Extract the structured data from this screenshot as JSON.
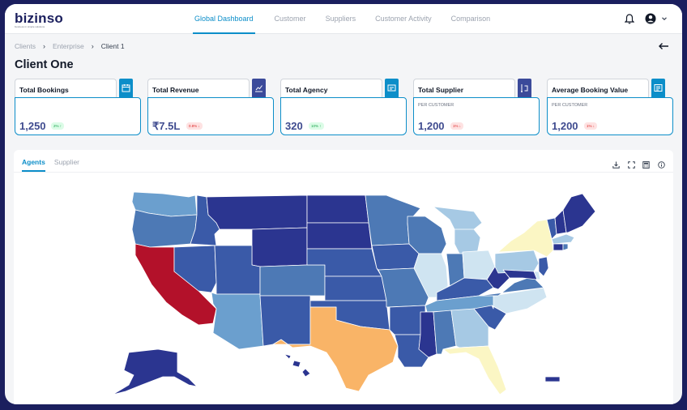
{
  "header": {
    "logo": "bizinso",
    "logo_tagline": "business in simple solutions",
    "nav": [
      "Global Dashboard",
      "Customer",
      "Suppliers",
      "Customer Activity",
      "Comparison"
    ],
    "active_nav": "Global Dashboard",
    "icons": [
      "bell-icon",
      "user-circle-icon",
      "chevron-down-icon"
    ]
  },
  "breadcrumb": [
    "Clients",
    "Enterprise",
    "Client 1"
  ],
  "page_title": "Client One",
  "cards": [
    {
      "title": "Total Bookings",
      "sub": "",
      "value": "1,250",
      "badge": "2% ↑",
      "trend": "up",
      "icon": "bookings-icon"
    },
    {
      "title": "Total Revenue",
      "sub": "",
      "value": "₹7.5L",
      "badge": "0.8% ↓",
      "trend": "down",
      "icon": "revenue-chart-icon"
    },
    {
      "title": "Total Agency",
      "sub": "",
      "value": "320",
      "badge": "10% ↑",
      "trend": "up",
      "icon": "agency-icon"
    },
    {
      "title": "Total Supplier",
      "sub": "PER CUSTOMER",
      "value": "1,200",
      "badge": "1% ↓",
      "trend": "down",
      "icon": "supplier-icon"
    },
    {
      "title": "Average Booking Value",
      "sub": "PER CUSTOMER",
      "value": "1,200",
      "badge": "1% ↓",
      "trend": "down",
      "icon": "booking-value-icon"
    }
  ],
  "panel": {
    "tabs": [
      "Agents",
      "Supplier"
    ],
    "active_tab": "Agents",
    "tools": [
      "download-icon",
      "fullscreen-icon",
      "calculator-icon",
      "info-icon"
    ]
  },
  "map": {
    "type": "choropleth",
    "region": "United States",
    "palette": {
      "dark_navy": "#2b3590",
      "blue": "#3a5aa8",
      "mid_blue": "#4d79b5",
      "light_blue": "#6b9fce",
      "pale_blue": "#a6c9e4",
      "ice_blue": "#cfe4f1",
      "pale_yellow": "#fbf6c4",
      "orange": "#f9b467",
      "red": "#b3112a"
    },
    "highlights": {
      "California": "red",
      "Texas": "orange",
      "New York": "pale_yellow",
      "Florida": "pale_yellow",
      "Illinois": "ice_blue"
    }
  },
  "colors": {
    "accent": "#0c8ec9",
    "frame": "#1b1f5e",
    "value": "#3f4b8f"
  }
}
